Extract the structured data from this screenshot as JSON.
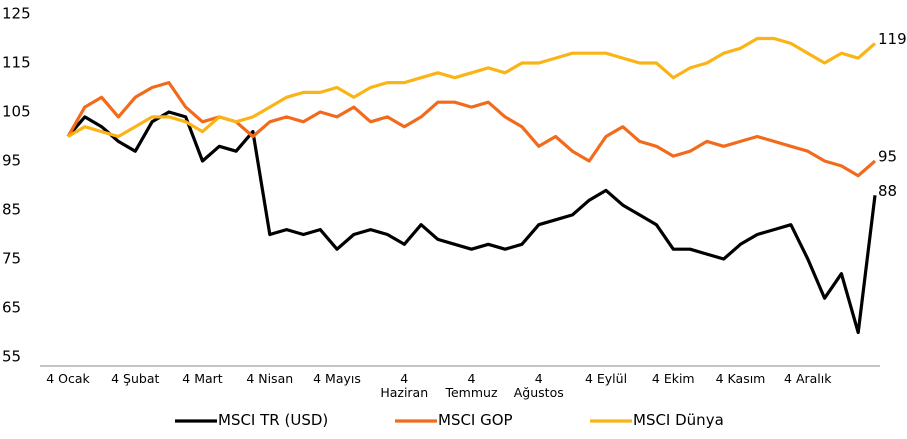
{
  "chart_data": {
    "type": "line",
    "categories": [
      "4 Ocak",
      null,
      null,
      null,
      "4 Şubat",
      null,
      null,
      null,
      "4 Mart",
      null,
      null,
      null,
      "4 Nisan",
      null,
      null,
      null,
      "4 Mayıs",
      null,
      null,
      null,
      "4 Haziran",
      null,
      null,
      null,
      "4 Temmuz",
      null,
      null,
      null,
      "4 Ağustos",
      null,
      null,
      null,
      "4 Eylül",
      null,
      null,
      null,
      "4 Ekim",
      null,
      null,
      null,
      "4 Kasım",
      null,
      null,
      null,
      "4 Aralık",
      null,
      null,
      null,
      null
    ],
    "series": [
      {
        "name": "MSCI TR (USD)",
        "color": "#000000",
        "end_label": 88,
        "values": [
          100,
          104,
          102,
          99,
          97,
          103,
          105,
          104,
          95,
          98,
          97,
          101,
          80,
          81,
          80,
          81,
          77,
          80,
          81,
          80,
          78,
          82,
          79,
          78,
          77,
          78,
          77,
          78,
          82,
          83,
          84,
          87,
          89,
          86,
          84,
          82,
          77,
          77,
          76,
          75,
          78,
          80,
          81,
          82,
          75,
          67,
          72,
          60,
          88
        ]
      },
      {
        "name": "MSCI GOP",
        "color": "#f26b1d",
        "end_label": 95,
        "values": [
          100,
          106,
          108,
          104,
          108,
          110,
          111,
          106,
          103,
          104,
          103,
          100,
          103,
          104,
          103,
          105,
          104,
          106,
          103,
          104,
          102,
          104,
          107,
          107,
          106,
          107,
          104,
          102,
          98,
          100,
          97,
          95,
          100,
          102,
          99,
          98,
          96,
          97,
          99,
          98,
          99,
          100,
          99,
          98,
          97,
          95,
          94,
          92,
          95
        ]
      },
      {
        "name": "MSCI Dünya",
        "color": "#fbb416",
        "end_label": 119,
        "values": [
          100,
          102,
          101,
          100,
          102,
          104,
          104,
          103,
          101,
          104,
          103,
          104,
          106,
          108,
          109,
          109,
          110,
          108,
          110,
          111,
          111,
          112,
          113,
          112,
          113,
          114,
          113,
          115,
          115,
          116,
          117,
          117,
          117,
          116,
          115,
          115,
          112,
          114,
          115,
          117,
          118,
          120,
          120,
          119,
          117,
          115,
          117,
          116,
          119
        ]
      }
    ],
    "ylim": [
      55,
      125
    ],
    "yticks": [
      55,
      65,
      75,
      85,
      95,
      105,
      115,
      125
    ],
    "grid": false
  }
}
